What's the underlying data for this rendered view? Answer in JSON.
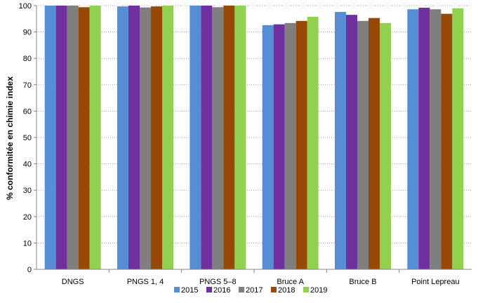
{
  "chart_data": {
    "type": "bar",
    "ylabel": "% conformitée en chimie index",
    "xlabel": "",
    "ylim": [
      0,
      100
    ],
    "yticks": [
      0,
      10,
      20,
      30,
      40,
      50,
      60,
      70,
      80,
      90,
      100
    ],
    "grid": "horizontal dotted",
    "legend_position": "bottom",
    "categories": [
      "DNGS",
      "PNGS 1, 4",
      "PNGS 5–8",
      "Bruce A",
      "Bruce B",
      "Point Lepreau"
    ],
    "series": [
      {
        "name": "2015",
        "color": "#558ed5",
        "values": [
          100,
          99.7,
          100,
          92.6,
          97.6,
          98.6
        ]
      },
      {
        "name": "2016",
        "color": "#7030a0",
        "values": [
          100,
          100,
          100,
          92.9,
          96.5,
          99.2
        ]
      },
      {
        "name": "2017",
        "color": "#7f7f7f",
        "values": [
          100,
          99.3,
          99.4,
          93.4,
          94.2,
          98.6
        ]
      },
      {
        "name": "2018",
        "color": "#984807",
        "values": [
          99.4,
          99.7,
          100,
          94.2,
          95.3,
          96.9
        ]
      },
      {
        "name": "2019",
        "color": "#92d050",
        "values": [
          100,
          100,
          100,
          95.8,
          93.4,
          99.0
        ]
      }
    ]
  }
}
